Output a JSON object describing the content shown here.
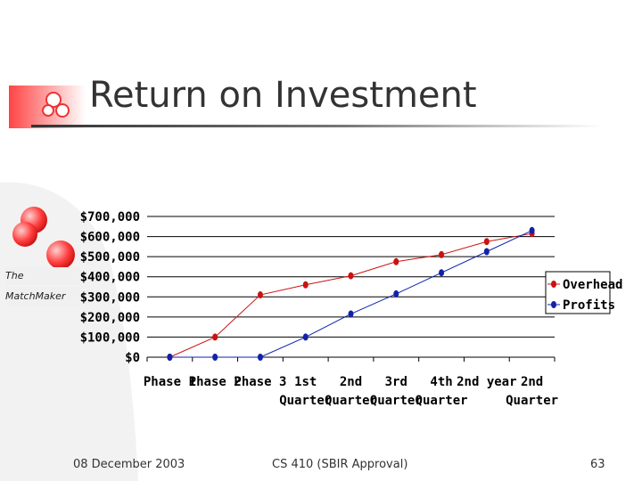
{
  "slide": {
    "title": "Return on Investment",
    "brand_line1": "The",
    "brand_line2": "MatchMaker",
    "footer_date": "08 December 2003",
    "footer_course": "CS 410 (SBIR Approval)",
    "footer_page": "63"
  },
  "colors": {
    "overhead": "#cc1111",
    "profits": "#1122aa",
    "accent_red": "#ee3333",
    "title_text": "#333333"
  },
  "chart_data": {
    "type": "line",
    "title": "",
    "xlabel": "",
    "ylabel": "",
    "ylim": [
      0,
      700000
    ],
    "y_ticks": [
      {
        "value": 0,
        "label": "$0"
      },
      {
        "value": 100000,
        "label": "$100,000"
      },
      {
        "value": 200000,
        "label": "$200,000"
      },
      {
        "value": 300000,
        "label": "$300,000"
      },
      {
        "value": 400000,
        "label": "$400,000"
      },
      {
        "value": 500000,
        "label": "$500,000"
      },
      {
        "value": 600000,
        "label": "$600,000"
      },
      {
        "value": 700000,
        "label": "$700,000"
      }
    ],
    "categories": [
      [
        "Phase 1"
      ],
      [
        "Phase 2"
      ],
      [
        "Phase 3"
      ],
      [
        "1st",
        "Quarter"
      ],
      [
        "2nd",
        "Quarter"
      ],
      [
        "3rd",
        "Quarter"
      ],
      [
        "4th",
        "Quarter"
      ],
      [
        "2nd year"
      ],
      [
        "2nd",
        "Quarter"
      ]
    ],
    "grid": "horizontal",
    "legend_position": "right",
    "series": [
      {
        "name": "Overhead",
        "values": [
          0,
          100000,
          310000,
          360000,
          405000,
          475000,
          510000,
          575000,
          615000
        ]
      },
      {
        "name": "Profits",
        "values": [
          0,
          0,
          0,
          100000,
          215000,
          315000,
          420000,
          525000,
          630000
        ]
      }
    ]
  }
}
